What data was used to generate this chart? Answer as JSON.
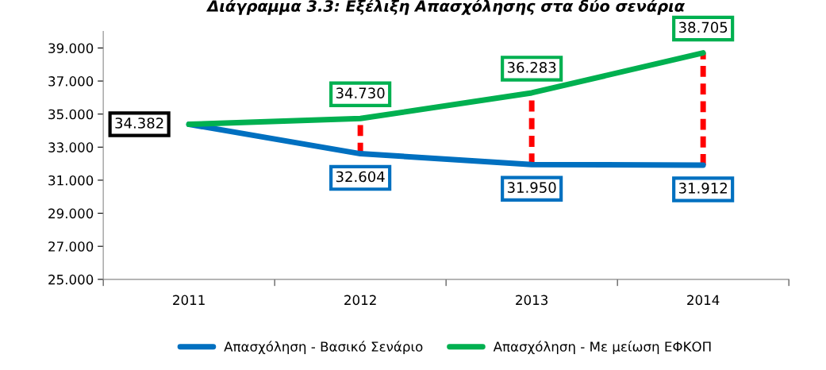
{
  "chart_data": {
    "type": "line",
    "title": "Διάγραμμα 3.3: Εξέλιξη Απασχόλησης στα δύο σενάρια",
    "categories": [
      "2011",
      "2012",
      "2013",
      "2014"
    ],
    "series": [
      {
        "name": "Απασχόληση - Βασικό Σενάριο",
        "color": "#0070c0",
        "values": [
          34.382,
          32.604,
          31.95,
          31.912
        ],
        "value_labels": [
          null,
          "32.604",
          "31.950",
          "31.912"
        ]
      },
      {
        "name": "Απασχόληση - Με μείωση ΕΦΚΟΠ",
        "color": "#00b050",
        "values": [
          34.382,
          34.73,
          36.283,
          38.705
        ],
        "value_labels": [
          null,
          "34.730",
          "36.283",
          "38.705"
        ]
      }
    ],
    "annotations": [
      {
        "text": "34.382",
        "x": "2011",
        "y": 34.382
      }
    ],
    "ylim": [
      25,
      40
    ],
    "yticks": [
      {
        "value": 25,
        "label": "25.000"
      },
      {
        "value": 27,
        "label": "27.000"
      },
      {
        "value": 29,
        "label": "29.000"
      },
      {
        "value": 31,
        "label": "31.000"
      },
      {
        "value": 33,
        "label": "33.000"
      },
      {
        "value": 35,
        "label": "35.000"
      },
      {
        "value": 37,
        "label": "37.000"
      },
      {
        "value": 39,
        "label": "39.000"
      }
    ],
    "grid": false,
    "legend": "bottom",
    "marker": "none",
    "line_style": "solid"
  }
}
